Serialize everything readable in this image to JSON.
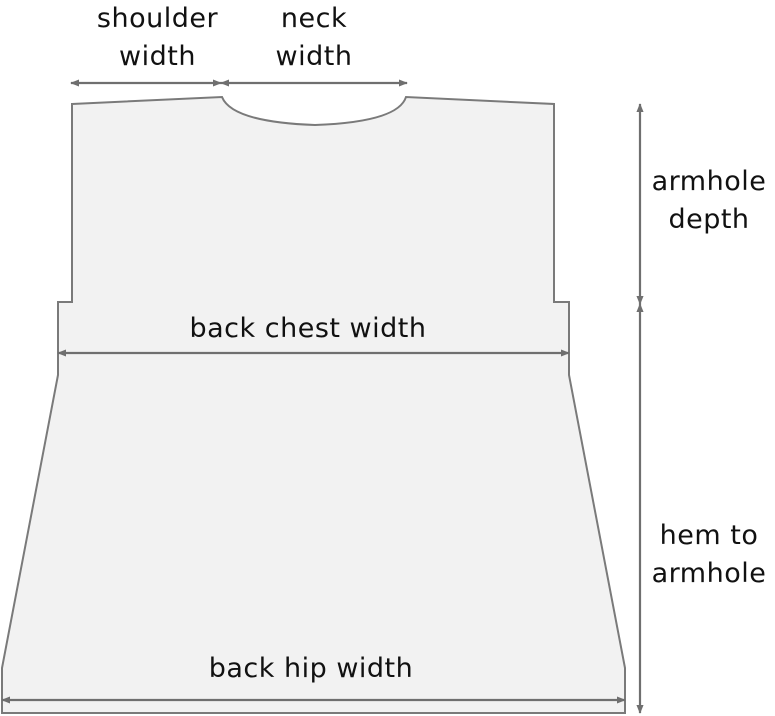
{
  "colors": {
    "panel_fill": "#f2f2f2",
    "panel_outline": "#7a7a7a",
    "arrow": "#6f6f6f",
    "text": "#111111"
  },
  "labels": {
    "shoulder_width": [
      "shoulder",
      "width"
    ],
    "neck_width": [
      "neck",
      "width"
    ],
    "armhole_depth": [
      "armhole",
      "depth"
    ],
    "back_chest_width": "back chest width",
    "hem_to_armhole": [
      "hem to",
      "armhole"
    ],
    "back_hip_width": "back hip width"
  }
}
